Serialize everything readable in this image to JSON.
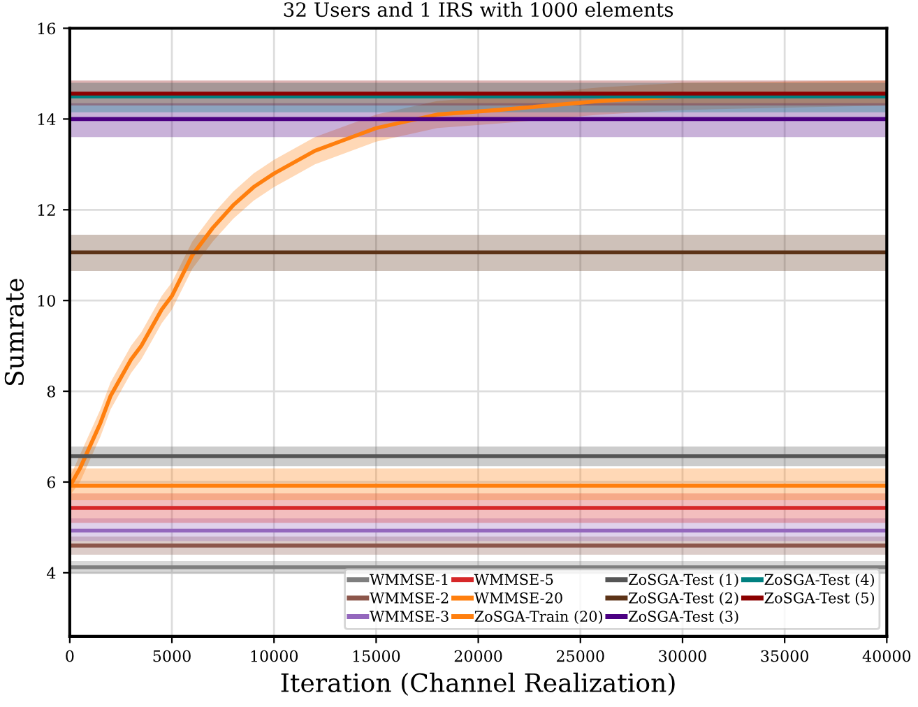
{
  "chart_data": {
    "type": "line",
    "title": "32 Users and 1 IRS with 1000 elements",
    "xlabel": "Iteration (Channel Realization)",
    "ylabel": "Sumrate",
    "xlim": [
      0,
      40000
    ],
    "ylim": [
      2.6,
      16
    ],
    "xticks": [
      0,
      5000,
      10000,
      15000,
      20000,
      25000,
      30000,
      35000,
      40000
    ],
    "yticks": [
      4,
      6,
      8,
      10,
      12,
      14,
      16
    ],
    "grid": true,
    "legend": "bottom right",
    "line_style": "solid",
    "marker": "none",
    "series": [
      {
        "name": "WMMSE-1",
        "color": "#7f7f7f",
        "x": [
          0,
          40000
        ],
        "values": [
          4.12,
          4.12
        ],
        "lower": [
          3.98,
          3.98
        ],
        "upper": [
          4.26,
          4.26
        ]
      },
      {
        "name": "WMMSE-2",
        "color": "#8c564b",
        "x": [
          0,
          40000
        ],
        "values": [
          4.6,
          4.6
        ],
        "lower": [
          4.4,
          4.4
        ],
        "upper": [
          4.8,
          4.8
        ]
      },
      {
        "name": "WMMSE-3",
        "color": "#9467bd",
        "x": [
          0,
          40000
        ],
        "values": [
          4.93,
          4.93
        ],
        "lower": [
          4.7,
          4.7
        ],
        "upper": [
          5.2,
          5.2
        ]
      },
      {
        "name": "WMMSE-5",
        "color": "#d62728",
        "x": [
          0,
          40000
        ],
        "values": [
          5.43,
          5.43
        ],
        "lower": [
          5.1,
          5.1
        ],
        "upper": [
          5.75,
          5.75
        ]
      },
      {
        "name": "WMMSE-20",
        "color": "#ff7f0e",
        "x": [
          0,
          40000
        ],
        "values": [
          5.92,
          5.92
        ],
        "lower": [
          5.6,
          5.6
        ],
        "upper": [
          6.3,
          6.3
        ]
      },
      {
        "name": "ZoSGA-Train (20)",
        "color": "#ff7f0e",
        "x": [
          0,
          500,
          1000,
          1500,
          2000,
          2500,
          3000,
          3500,
          4000,
          4500,
          5000,
          6000,
          7000,
          8000,
          9000,
          10000,
          12000,
          15000,
          18000,
          21000,
          26000,
          30000,
          40000
        ],
        "values": [
          5.9,
          6.3,
          6.8,
          7.3,
          7.9,
          8.3,
          8.7,
          9.0,
          9.4,
          9.8,
          10.1,
          11.0,
          11.6,
          12.1,
          12.5,
          12.8,
          13.3,
          13.8,
          14.1,
          14.2,
          14.4,
          14.5,
          14.55
        ],
        "lower": [
          5.7,
          6.0,
          6.5,
          7.0,
          7.6,
          8.0,
          8.4,
          8.7,
          9.1,
          9.5,
          9.8,
          10.7,
          11.3,
          11.8,
          12.2,
          12.5,
          13.0,
          13.5,
          13.8,
          13.9,
          14.1,
          14.2,
          14.3
        ],
        "upper": [
          6.1,
          6.6,
          7.1,
          7.6,
          8.2,
          8.6,
          9.0,
          9.3,
          9.7,
          10.1,
          10.4,
          11.3,
          11.9,
          12.4,
          12.8,
          13.1,
          13.6,
          14.1,
          14.4,
          14.5,
          14.7,
          14.8,
          14.85
        ]
      },
      {
        "name": "ZoSGA-Test (1)",
        "color": "#555555",
        "x": [
          0,
          40000
        ],
        "values": [
          6.57,
          6.57
        ],
        "lower": [
          6.35,
          6.35
        ],
        "upper": [
          6.78,
          6.78
        ]
      },
      {
        "name": "ZoSGA-Test (2)",
        "color": "#5c3317",
        "x": [
          0,
          40000
        ],
        "values": [
          11.06,
          11.06
        ],
        "lower": [
          10.65,
          10.65
        ],
        "upper": [
          11.45,
          11.45
        ]
      },
      {
        "name": "ZoSGA-Test (3)",
        "color": "#4b0082",
        "x": [
          0,
          40000
        ],
        "values": [
          14.0,
          14.0
        ],
        "lower": [
          13.6,
          13.6
        ],
        "upper": [
          14.35,
          14.35
        ]
      },
      {
        "name": "ZoSGA-Test (4)",
        "color": "#008080",
        "x": [
          0,
          40000
        ],
        "values": [
          14.5,
          14.5
        ],
        "lower": [
          14.15,
          14.15
        ],
        "upper": [
          14.8,
          14.8
        ]
      },
      {
        "name": "ZoSGA-Test (5)",
        "color": "#8b0000",
        "x": [
          0,
          40000
        ],
        "values": [
          14.56,
          14.56
        ],
        "lower": [
          14.3,
          14.3
        ],
        "upper": [
          14.85,
          14.85
        ]
      }
    ]
  }
}
